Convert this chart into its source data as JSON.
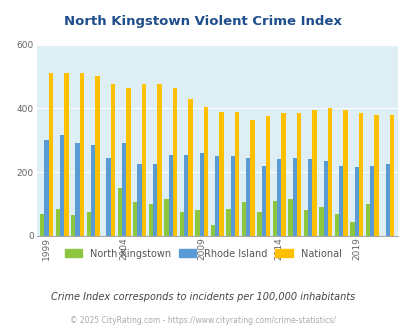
{
  "title": "North Kingstown Violent Crime Index",
  "subtitle": "Crime Index corresponds to incidents per 100,000 inhabitants",
  "copyright": "© 2025 CityRating.com - https://www.cityrating.com/crime-statistics/",
  "years": [
    1999,
    2000,
    2001,
    2002,
    2003,
    2004,
    2005,
    2006,
    2007,
    2008,
    2009,
    2010,
    2011,
    2012,
    2013,
    2014,
    2015,
    2016,
    2017,
    2018,
    2019,
    2020,
    2021
  ],
  "north_kingstown": [
    70,
    85,
    65,
    75,
    0,
    150,
    105,
    100,
    115,
    75,
    80,
    35,
    85,
    105,
    75,
    110,
    115,
    80,
    90,
    70,
    45,
    100,
    0
  ],
  "rhode_island": [
    300,
    315,
    290,
    285,
    245,
    290,
    225,
    225,
    255,
    255,
    260,
    250,
    250,
    245,
    220,
    240,
    245,
    240,
    235,
    220,
    215,
    220,
    225
  ],
  "national": [
    510,
    510,
    510,
    500,
    475,
    465,
    475,
    475,
    465,
    430,
    405,
    390,
    390,
    365,
    375,
    385,
    385,
    395,
    400,
    395,
    385,
    380,
    380
  ],
  "ylim": [
    0,
    600
  ],
  "yticks": [
    0,
    200,
    400,
    600
  ],
  "bg_color": "#ddeef5",
  "color_nk": "#8dc63f",
  "color_ri": "#5b9bd5",
  "color_nat": "#ffc000",
  "bar_width": 0.28,
  "title_color": "#1f4e8c",
  "subtitle_color": "#444444",
  "copyright_color": "#aaaaaa",
  "tick_label_years": [
    1999,
    2004,
    2009,
    2014,
    2019
  ],
  "legend_label_nk": "North Kingstown",
  "legend_label_ri": "Rhode Island",
  "legend_label_nat": "National"
}
